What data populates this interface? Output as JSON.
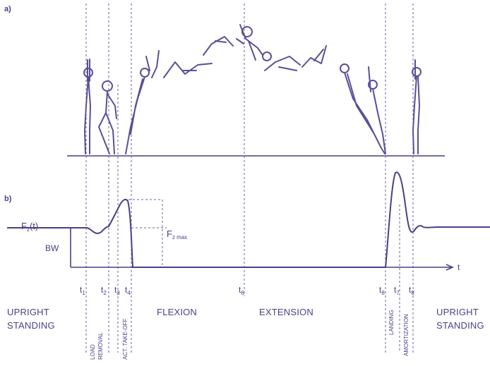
{
  "panels": {
    "a": "a)",
    "b": "b)"
  },
  "force_labels": {
    "fz_t": "F",
    "fz_t_sub": "z",
    "fz_t_arg": "(t)",
    "bw": "BW",
    "fzmax": "F",
    "fzmax_sub": "z max",
    "t_axis": "t"
  },
  "ticks": [
    {
      "base": "t",
      "sub": "1"
    },
    {
      "base": "t",
      "sub": "2"
    },
    {
      "base": "t",
      "sub": "3"
    },
    {
      "base": "t",
      "sub": "4"
    },
    {
      "base": "t",
      "sub": "6"
    },
    {
      "base": "t",
      "sub": "8"
    },
    {
      "base": "t",
      "sub": "7"
    },
    {
      "base": "t",
      "sub": "8"
    }
  ],
  "phases": {
    "upright_left_1": "UPRIGHT",
    "upright_left_2": "STANDING",
    "load_1": "LOAD",
    "load_2": "REMOVAL",
    "act_takeoff": "ACT. TAKE-OFF",
    "flexion": "FLEXION",
    "extension": "EXTENSION",
    "landing": "LANDING",
    "amortization": "AMORTIZATION",
    "upright_right_1": "UPRIGHT",
    "upright_right_2": "STANDING"
  },
  "colors": {
    "ink": "#4b3f86"
  }
}
